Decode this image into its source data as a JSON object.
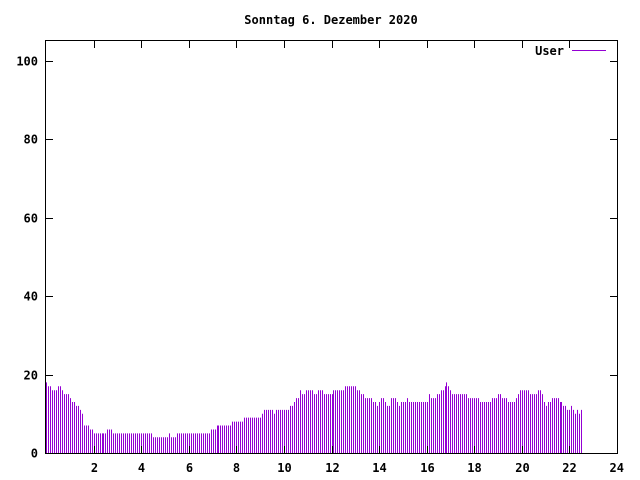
{
  "chart_data": {
    "type": "bar",
    "title": "Sonntag 6. Dezember 2020",
    "xlabel": "",
    "ylabel": "",
    "xlim": [
      0,
      24
    ],
    "ylim": [
      0,
      105
    ],
    "x_ticks": [
      2,
      4,
      6,
      8,
      10,
      12,
      14,
      16,
      18,
      20,
      22,
      24
    ],
    "x_tick_labels": [
      "2",
      "4",
      "6",
      "8",
      "10",
      "12",
      "14",
      "16",
      "18",
      "20",
      "22",
      "24"
    ],
    "y_ticks": [
      0,
      20,
      40,
      60,
      80,
      100
    ],
    "y_tick_labels": [
      "0",
      "20",
      "40",
      "60",
      "80",
      "100"
    ],
    "grid": false,
    "legend": "top-right",
    "colors": {
      "series": "#9400d3",
      "axis": "#000000",
      "background": "#ffffff"
    },
    "series": [
      {
        "name": "User",
        "interval_minutes": 5,
        "values": [
          18,
          17,
          17,
          16,
          16,
          16,
          17,
          17,
          16,
          15,
          15,
          15,
          14,
          13,
          13,
          12,
          12,
          11,
          10,
          7,
          7,
          7,
          6,
          6,
          5,
          5,
          5,
          5,
          5,
          5,
          5,
          6,
          6,
          6,
          5,
          5,
          5,
          5,
          5,
          5,
          5,
          5,
          5,
          5,
          5,
          5,
          5,
          5,
          5,
          5,
          5,
          5,
          5,
          5,
          4,
          4,
          4,
          4,
          4,
          4,
          4,
          4,
          5,
          4,
          4,
          4,
          5,
          5,
          5,
          5,
          5,
          5,
          5,
          5,
          5,
          5,
          5,
          5,
          5,
          5,
          5,
          5,
          5,
          6,
          6,
          6,
          7,
          7,
          7,
          7,
          7,
          7,
          7,
          7,
          8,
          8,
          8,
          8,
          8,
          8,
          9,
          9,
          9,
          9,
          9,
          9,
          9,
          9,
          9,
          10,
          11,
          11,
          11,
          11,
          11,
          10,
          11,
          11,
          11,
          11,
          11,
          11,
          11,
          12,
          12,
          13,
          14,
          14,
          16,
          15,
          15,
          16,
          16,
          16,
          16,
          15,
          15,
          16,
          16,
          16,
          15,
          15,
          15,
          15,
          15,
          16,
          16,
          16,
          16,
          16,
          16,
          17,
          17,
          17,
          17,
          17,
          17,
          16,
          16,
          15,
          15,
          14,
          14,
          14,
          14,
          13,
          13,
          12,
          13,
          14,
          14,
          13,
          12,
          12,
          14,
          14,
          14,
          13,
          12,
          13,
          13,
          13,
          14,
          13,
          13,
          13,
          13,
          13,
          13,
          13,
          13,
          13,
          13,
          15,
          14,
          14,
          14,
          15,
          15,
          16,
          16,
          17,
          18,
          17,
          16,
          15,
          15,
          15,
          15,
          15,
          15,
          15,
          15,
          14,
          14,
          14,
          14,
          14,
          14,
          13,
          13,
          13,
          13,
          13,
          13,
          14,
          14,
          14,
          15,
          15,
          14,
          14,
          14,
          13,
          13,
          13,
          13,
          14,
          15,
          16,
          16,
          16,
          16,
          16,
          15,
          15,
          15,
          15,
          16,
          16,
          15,
          13,
          12,
          13,
          13,
          14,
          14,
          14,
          14,
          13,
          13,
          12,
          12,
          11,
          11,
          12,
          11,
          10,
          11,
          10,
          11
        ]
      }
    ]
  }
}
